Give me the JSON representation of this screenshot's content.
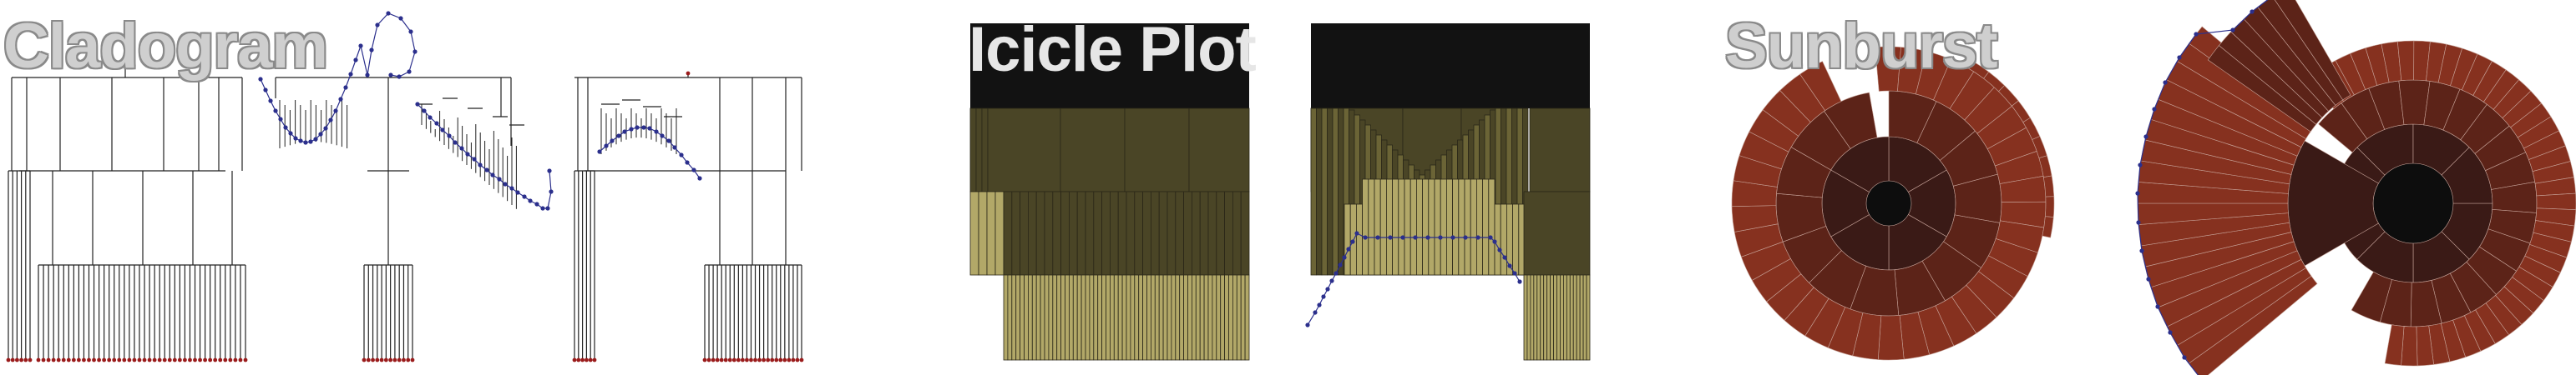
{
  "titles": {
    "cladogram": "Cladogram",
    "icicle": "Icicle Plot",
    "sunburst": "Sunburst"
  },
  "colors": {
    "line": "#222222",
    "leaf_dot": "#9a1b1b",
    "path_dot": "#2b2f8c",
    "icicle_dark": "#121212",
    "icicle_mid": "#4a4526",
    "icicle_light": "#b2a868",
    "sun_dark": "#3a1a16",
    "sun_mid": "#5c2318",
    "sun_light": "#86311f",
    "sun_hole": "#0d0d0d"
  }
}
